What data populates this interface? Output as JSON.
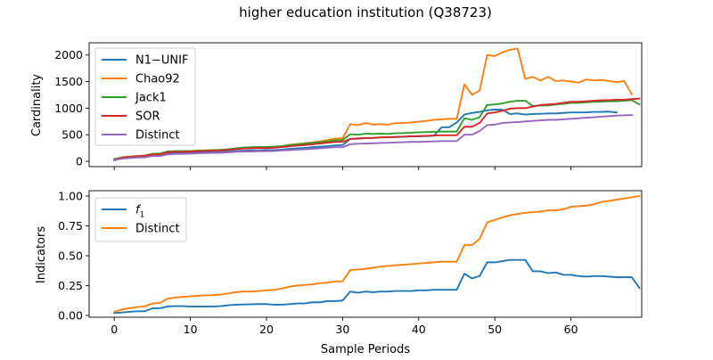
{
  "figure": {
    "title": "higher education institution (Q38723)"
  },
  "chart_data": [
    {
      "type": "line",
      "ylabel": "Cardinality",
      "xlabel": "",
      "xlim": [
        -3.3,
        69.3
      ],
      "ylim": [
        -100,
        2230
      ],
      "xticks": [
        0,
        10,
        20,
        30,
        40,
        50,
        60
      ],
      "yticks": [
        0,
        500,
        1000,
        1500,
        2000
      ],
      "x_tick_labels_visible": false,
      "legend_position": "upper-left",
      "series": [
        {
          "name": "N1−UNIF",
          "color": "#1f77b4",
          "values": [
            20,
            55,
            70,
            80,
            85,
            110,
            110,
            150,
            160,
            160,
            160,
            165,
            170,
            170,
            175,
            185,
            195,
            200,
            205,
            205,
            210,
            210,
            220,
            235,
            245,
            250,
            265,
            275,
            285,
            300,
            305,
            420,
            425,
            435,
            440,
            450,
            450,
            455,
            460,
            470,
            470,
            475,
            480,
            640,
            640,
            730,
            880,
            910,
            930,
            960,
            975,
            970,
            890,
            900,
            880,
            890,
            895,
            900,
            900,
            910,
            920,
            920,
            920,
            930,
            930,
            935,
            920
          ]
        },
        {
          "name": "Chao92",
          "color": "#ff7f0e",
          "values": [
            40,
            75,
            90,
            100,
            110,
            140,
            145,
            180,
            190,
            195,
            195,
            200,
            205,
            210,
            215,
            225,
            240,
            255,
            260,
            265,
            265,
            275,
            285,
            310,
            325,
            340,
            355,
            375,
            400,
            430,
            430,
            700,
            680,
            720,
            690,
            700,
            690,
            720,
            720,
            730,
            745,
            760,
            780,
            790,
            800,
            800,
            1450,
            1250,
            1330,
            2000,
            1980,
            2050,
            2100,
            2120,
            1550,
            1590,
            1520,
            1590,
            1510,
            1520,
            1500,
            1480,
            1540,
            1520,
            1530,
            1510,
            1490,
            1510,
            1260
          ]
        },
        {
          "name": "Jack1",
          "color": "#2ca02c",
          "values": [
            40,
            75,
            85,
            95,
            105,
            140,
            145,
            185,
            190,
            195,
            195,
            200,
            205,
            210,
            215,
            225,
            245,
            260,
            265,
            270,
            270,
            275,
            285,
            305,
            320,
            330,
            345,
            360,
            375,
            395,
            400,
            510,
            500,
            520,
            515,
            520,
            515,
            530,
            530,
            540,
            545,
            550,
            555,
            560,
            560,
            560,
            810,
            780,
            830,
            1060,
            1070,
            1090,
            1120,
            1140,
            1140,
            1040,
            1050,
            1050,
            1070,
            1080,
            1100,
            1100,
            1110,
            1120,
            1120,
            1130,
            1130,
            1140,
            1150,
            1070
          ]
        },
        {
          "name": "SOR",
          "color": "#d62728",
          "values": [
            30,
            70,
            80,
            95,
            100,
            130,
            130,
            170,
            180,
            180,
            185,
            190,
            195,
            200,
            205,
            215,
            230,
            240,
            245,
            250,
            250,
            255,
            265,
            285,
            295,
            305,
            320,
            335,
            350,
            365,
            365,
            420,
            430,
            440,
            440,
            450,
            455,
            460,
            465,
            470,
            475,
            480,
            485,
            490,
            490,
            490,
            650,
            650,
            720,
            900,
            920,
            950,
            990,
            1000,
            1000,
            1030,
            1060,
            1070,
            1080,
            1100,
            1120,
            1120,
            1130,
            1140,
            1150,
            1150,
            1160,
            1160,
            1170,
            1180
          ]
        },
        {
          "name": "Distinct",
          "color": "#9467bd",
          "values": [
            25,
            50,
            60,
            70,
            75,
            100,
            100,
            130,
            140,
            140,
            145,
            150,
            155,
            160,
            160,
            170,
            180,
            185,
            185,
            190,
            190,
            195,
            205,
            210,
            220,
            225,
            235,
            245,
            255,
            265,
            265,
            320,
            330,
            335,
            340,
            345,
            350,
            355,
            360,
            365,
            365,
            370,
            375,
            380,
            380,
            380,
            500,
            500,
            570,
            680,
            690,
            720,
            730,
            740,
            750,
            760,
            770,
            780,
            780,
            790,
            800,
            810,
            820,
            830,
            840,
            850,
            860,
            865,
            870
          ]
        }
      ]
    },
    {
      "type": "line",
      "ylabel": "Indicators",
      "xlabel": "Sample Periods",
      "xlim": [
        -3.3,
        69.3
      ],
      "ylim": [
        -0.015,
        1.045
      ],
      "xticks": [
        0,
        10,
        20,
        30,
        40,
        50,
        60
      ],
      "yticks": [
        0.0,
        0.25,
        0.5,
        0.75,
        1.0
      ],
      "ytick_labels": [
        "0.00",
        "0.25",
        "0.50",
        "0.75",
        "1.00"
      ],
      "legend_position": "upper-left",
      "series": [
        {
          "name": "f1",
          "label_main": "f",
          "label_sub": "1",
          "color": "#1f77b4",
          "values": [
            0.02,
            0.025,
            0.03,
            0.035,
            0.035,
            0.06,
            0.06,
            0.075,
            0.078,
            0.078,
            0.075,
            0.075,
            0.075,
            0.075,
            0.078,
            0.085,
            0.09,
            0.092,
            0.094,
            0.095,
            0.095,
            0.09,
            0.09,
            0.095,
            0.1,
            0.1,
            0.11,
            0.11,
            0.12,
            0.12,
            0.125,
            0.2,
            0.19,
            0.2,
            0.195,
            0.2,
            0.2,
            0.205,
            0.205,
            0.205,
            0.21,
            0.21,
            0.215,
            0.215,
            0.215,
            0.215,
            0.35,
            0.31,
            0.33,
            0.445,
            0.445,
            0.455,
            0.465,
            0.465,
            0.465,
            0.37,
            0.37,
            0.355,
            0.36,
            0.34,
            0.34,
            0.33,
            0.325,
            0.33,
            0.33,
            0.325,
            0.32,
            0.32,
            0.32,
            0.23
          ]
        },
        {
          "name": "Distinct",
          "color": "#ff7f0e",
          "values": [
            0.03,
            0.05,
            0.06,
            0.07,
            0.075,
            0.1,
            0.105,
            0.14,
            0.15,
            0.155,
            0.16,
            0.165,
            0.168,
            0.17,
            0.175,
            0.185,
            0.195,
            0.2,
            0.2,
            0.205,
            0.21,
            0.215,
            0.225,
            0.24,
            0.25,
            0.255,
            0.26,
            0.27,
            0.275,
            0.285,
            0.285,
            0.38,
            0.385,
            0.39,
            0.4,
            0.41,
            0.415,
            0.42,
            0.425,
            0.43,
            0.435,
            0.44,
            0.445,
            0.45,
            0.45,
            0.45,
            0.59,
            0.59,
            0.64,
            0.78,
            0.8,
            0.82,
            0.84,
            0.85,
            0.86,
            0.865,
            0.87,
            0.88,
            0.88,
            0.89,
            0.91,
            0.915,
            0.92,
            0.93,
            0.95,
            0.96,
            0.97,
            0.98,
            0.99,
            1.0
          ]
        }
      ]
    }
  ]
}
